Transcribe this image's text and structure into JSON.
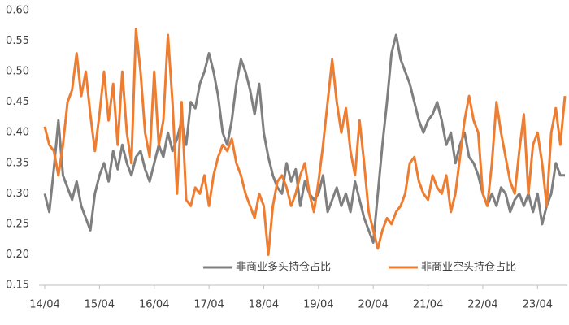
{
  "chart_data": {
    "type": "line",
    "categories": [
      "14/04",
      null,
      null,
      null,
      null,
      null,
      null,
      null,
      null,
      null,
      null,
      null,
      "15/04",
      null,
      null,
      null,
      null,
      null,
      null,
      null,
      null,
      null,
      null,
      null,
      "16/04",
      null,
      null,
      null,
      null,
      null,
      null,
      null,
      null,
      null,
      null,
      null,
      "17/04",
      null,
      null,
      null,
      null,
      null,
      null,
      null,
      null,
      null,
      null,
      null,
      "18/04",
      null,
      null,
      null,
      null,
      null,
      null,
      null,
      null,
      null,
      null,
      null,
      "19/04",
      null,
      null,
      null,
      null,
      null,
      null,
      null,
      null,
      null,
      null,
      null,
      "20/04",
      null,
      null,
      null,
      null,
      null,
      null,
      null,
      null,
      null,
      null,
      null,
      "21/04",
      null,
      null,
      null,
      null,
      null,
      null,
      null,
      null,
      null,
      null,
      null,
      "22/04",
      null,
      null,
      null,
      null,
      null,
      null,
      null,
      null,
      null,
      null,
      null,
      "23/04",
      null,
      null,
      null,
      null,
      null,
      null
    ],
    "series": [
      {
        "name": "非商业多头持仓占比",
        "color": "#7f7f7f",
        "values": [
          0.3,
          0.27,
          0.34,
          0.42,
          0.33,
          0.31,
          0.29,
          0.32,
          0.28,
          0.26,
          0.24,
          0.3,
          0.33,
          0.35,
          0.32,
          0.37,
          0.34,
          0.38,
          0.35,
          0.33,
          0.36,
          0.37,
          0.34,
          0.32,
          0.35,
          0.38,
          0.36,
          0.4,
          0.37,
          0.39,
          0.42,
          0.38,
          0.45,
          0.44,
          0.48,
          0.5,
          0.53,
          0.5,
          0.46,
          0.4,
          0.38,
          0.42,
          0.48,
          0.52,
          0.5,
          0.47,
          0.43,
          0.48,
          0.4,
          0.36,
          0.33,
          0.31,
          0.3,
          0.35,
          0.32,
          0.34,
          0.28,
          0.32,
          0.3,
          0.29,
          0.3,
          0.33,
          0.27,
          0.29,
          0.31,
          0.28,
          0.3,
          0.27,
          0.32,
          0.29,
          0.26,
          0.24,
          0.22,
          0.3,
          0.38,
          0.45,
          0.53,
          0.56,
          0.52,
          0.5,
          0.48,
          0.45,
          0.42,
          0.4,
          0.42,
          0.43,
          0.45,
          0.42,
          0.38,
          0.4,
          0.35,
          0.38,
          0.4,
          0.36,
          0.35,
          0.33,
          0.3,
          0.28,
          0.3,
          0.28,
          0.31,
          0.3,
          0.27,
          0.29,
          0.3,
          0.28,
          0.3,
          0.27,
          0.3,
          0.25,
          0.28,
          0.3,
          0.35,
          0.33,
          0.33
        ]
      },
      {
        "name": "非商业空头持仓占比",
        "color": "#ed7d31",
        "values": [
          0.41,
          0.38,
          0.37,
          0.33,
          0.38,
          0.45,
          0.47,
          0.53,
          0.46,
          0.5,
          0.43,
          0.37,
          0.43,
          0.5,
          0.42,
          0.48,
          0.38,
          0.5,
          0.4,
          0.35,
          0.57,
          0.5,
          0.4,
          0.36,
          0.5,
          0.38,
          0.42,
          0.56,
          0.45,
          0.3,
          0.45,
          0.29,
          0.28,
          0.31,
          0.3,
          0.33,
          0.28,
          0.33,
          0.36,
          0.38,
          0.37,
          0.39,
          0.35,
          0.33,
          0.3,
          0.28,
          0.26,
          0.3,
          0.28,
          0.2,
          0.28,
          0.32,
          0.33,
          0.31,
          0.28,
          0.3,
          0.33,
          0.35,
          0.3,
          0.27,
          0.32,
          0.38,
          0.45,
          0.52,
          0.45,
          0.4,
          0.44,
          0.37,
          0.33,
          0.42,
          0.35,
          0.27,
          0.24,
          0.21,
          0.24,
          0.26,
          0.25,
          0.27,
          0.28,
          0.3,
          0.35,
          0.36,
          0.32,
          0.3,
          0.29,
          0.33,
          0.31,
          0.3,
          0.33,
          0.27,
          0.3,
          0.36,
          0.42,
          0.46,
          0.42,
          0.4,
          0.3,
          0.28,
          0.35,
          0.45,
          0.4,
          0.36,
          0.32,
          0.3,
          0.37,
          0.43,
          0.3,
          0.38,
          0.4,
          0.35,
          0.28,
          0.4,
          0.44,
          0.38,
          0.46
        ]
      }
    ],
    "ylim": [
      0.15,
      0.6
    ],
    "yticks": [
      0.15,
      {
        "value": 0.2,
        "label": "0.20"
      },
      0.25,
      {
        "value": 0.3,
        "label": "0.30"
      },
      0.35,
      {
        "value": 0.4,
        "label": "0.40"
      },
      0.45,
      {
        "value": 0.5,
        "label": "0.50"
      },
      0.55,
      {
        "value": 0.6,
        "label": "0.60"
      }
    ],
    "grid": false,
    "legend": "bottom"
  }
}
